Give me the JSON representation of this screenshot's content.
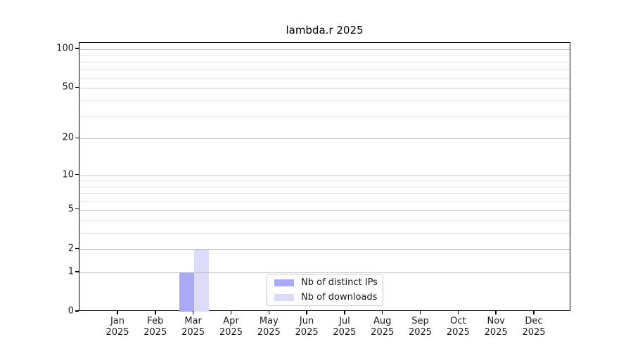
{
  "title": "lambda.r 2025",
  "chart_data": {
    "type": "bar",
    "title": "lambda.r 2025",
    "categories": [
      "Jan",
      "Feb",
      "Mar",
      "Apr",
      "May",
      "Jun",
      "Jul",
      "Aug",
      "Sep",
      "Oct",
      "Nov",
      "Dec"
    ],
    "x_tick_year": "2025",
    "series": [
      {
        "name": "Nb of distinct IPs",
        "color": "#a9a9f6",
        "values": [
          0,
          0,
          1,
          0,
          0,
          0,
          0,
          0,
          0,
          0,
          0,
          0
        ]
      },
      {
        "name": "Nb of downloads",
        "color": "#dcdcf9",
        "values": [
          0,
          0,
          2,
          0,
          0,
          0,
          0,
          0,
          0,
          0,
          0,
          0
        ]
      }
    ],
    "yscale": "log10(value+1)",
    "ylim": [
      0,
      112
    ],
    "y_ticks": [
      0,
      1,
      2,
      5,
      10,
      20,
      50,
      100
    ],
    "y_minor_ticks": [
      3,
      4,
      6,
      7,
      8,
      9,
      30,
      40,
      60,
      70,
      80,
      90
    ],
    "grid": "horizontal",
    "legend_position": "inside-bottom-center",
    "colors": {
      "axis": "#000000",
      "grid_major": "#b8b8b8",
      "grid_minor": "#e4e4e4",
      "text": "#1a1a1a",
      "background": "#ffffff"
    }
  }
}
